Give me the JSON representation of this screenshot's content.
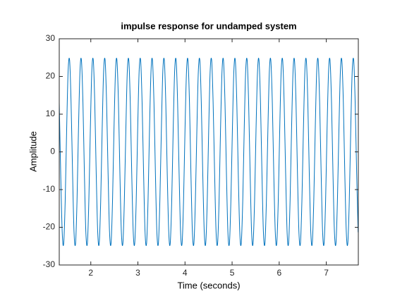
{
  "chart_data": {
    "type": "line",
    "title": "impulse response  for undamped system",
    "xlabel": "Time (seconds)",
    "ylabel": "Amplitude",
    "xlim": [
      1.33,
      7.68
    ],
    "ylim": [
      -30,
      30
    ],
    "xticks": [
      2,
      3,
      4,
      5,
      6,
      7
    ],
    "yticks": [
      -30,
      -20,
      -10,
      0,
      10,
      20,
      30
    ],
    "x": [
      1.33,
      1.361,
      1.393,
      1.424,
      1.456,
      1.487,
      1.518,
      1.55,
      1.581,
      1.613,
      1.644,
      1.676,
      1.707,
      1.738,
      1.77,
      1.801,
      1.833,
      1.864,
      1.895,
      1.927,
      1.958,
      1.99,
      2.021,
      2.053,
      2.084,
      2.115,
      2.147,
      2.178,
      2.21,
      2.241,
      2.272,
      2.304,
      2.335,
      2.367,
      2.398,
      2.43,
      2.461,
      2.492,
      2.524,
      2.555,
      2.587,
      2.618,
      2.649,
      2.681,
      2.712,
      2.744,
      2.775,
      2.807,
      2.838,
      2.869,
      2.901,
      2.932,
      2.964,
      2.995,
      3.026,
      3.058,
      3.089,
      3.121,
      3.152,
      3.184,
      3.215,
      3.246,
      3.278,
      3.309,
      3.341,
      3.372,
      3.403,
      3.435,
      3.466,
      3.498,
      3.529,
      3.561,
      3.592,
      3.623,
      3.655,
      3.686,
      3.718,
      3.749,
      3.78,
      3.812,
      3.843,
      3.875,
      3.906,
      3.938,
      3.969,
      4.0,
      4.032,
      4.063,
      4.095,
      4.126,
      4.157,
      4.189,
      4.22,
      4.252,
      4.283,
      4.315,
      4.346,
      4.377,
      4.409,
      4.44,
      4.472,
      4.503,
      4.534,
      4.566,
      4.597,
      4.629,
      4.66,
      4.692,
      4.723,
      4.754,
      4.786,
      4.817,
      4.849,
      4.88,
      4.911,
      4.943,
      4.974,
      5.006,
      5.037,
      5.068,
      5.1,
      5.131,
      5.163,
      5.194,
      5.226,
      5.257,
      5.288,
      5.32,
      5.351,
      5.383,
      5.414,
      5.445,
      5.477,
      5.508,
      5.54,
      5.571,
      5.603,
      5.634,
      5.665,
      5.697,
      5.728,
      5.76,
      5.791,
      5.822,
      5.854,
      5.885,
      5.917,
      5.948,
      5.98,
      6.011,
      6.042,
      6.074,
      6.105,
      6.137,
      6.168,
      6.199,
      6.231,
      6.262,
      6.294,
      6.325,
      6.357,
      6.388,
      6.419,
      6.451,
      6.482,
      6.514,
      6.545,
      6.576,
      6.608,
      6.639,
      6.671,
      6.702,
      6.734,
      6.765,
      6.796,
      6.828,
      6.859,
      6.891,
      6.922,
      6.953,
      6.985,
      7.016,
      7.048,
      7.079,
      7.111,
      7.142,
      7.173,
      7.205,
      7.236,
      7.268,
      7.299,
      7.33,
      7.362,
      7.393,
      7.425,
      7.456,
      7.488,
      7.519,
      7.55,
      7.582,
      7.613,
      7.645,
      7.676
    ],
    "series": [
      {
        "color": "#0072bd",
        "values": [
          13.09,
          -5.79,
          -21.33,
          -24.32,
          -13.09,
          5.79,
          21.33,
          24.32,
          13.09,
          -5.79,
          -21.33,
          -24.32,
          -13.09,
          5.79,
          21.33,
          24.32,
          13.09,
          -5.79,
          -21.33,
          -24.32,
          -13.09,
          5.79,
          21.33,
          24.32,
          13.09,
          -5.79,
          -21.33,
          -24.32,
          -13.09,
          5.79,
          21.33,
          24.32,
          13.09,
          -5.79,
          -21.33,
          -24.32,
          -13.09,
          5.79,
          21.33,
          24.32,
          13.09,
          -5.79,
          -21.33,
          -24.32,
          -13.09,
          5.79,
          21.33,
          24.32,
          13.09,
          -5.79,
          -21.33,
          -24.32,
          -13.09,
          5.79,
          21.33,
          24.32,
          13.09,
          -5.79,
          -21.33,
          -24.32,
          -13.09,
          5.79,
          21.33,
          24.32,
          13.09,
          -5.79,
          -21.33,
          -24.32,
          -13.09,
          5.79,
          21.33,
          24.32,
          13.09,
          -5.79,
          -21.33,
          -24.32,
          -13.09,
          5.79,
          21.33,
          24.32,
          13.09,
          -5.79,
          -21.33,
          -24.32,
          -13.09,
          5.79,
          21.33,
          24.32,
          13.09,
          -5.79,
          -21.33,
          -24.32,
          -13.09,
          5.79,
          21.33,
          24.32,
          13.09,
          -5.79,
          -21.33,
          -24.32,
          -13.09,
          5.79,
          21.33,
          24.32,
          13.09,
          -5.79,
          -21.33,
          -24.32,
          -13.09,
          5.79,
          21.33,
          24.32,
          13.09,
          -5.79,
          -21.33,
          -24.32,
          -13.09,
          5.79,
          21.33,
          24.32,
          13.09,
          -5.79,
          -21.33,
          -24.32,
          -13.09,
          5.79,
          21.33,
          24.32,
          13.09,
          -5.79,
          -21.33,
          -24.32,
          -13.09,
          5.79,
          21.33,
          24.32,
          13.09,
          -5.79,
          -21.33,
          -24.32,
          -13.09,
          5.79,
          21.33,
          24.32,
          13.09,
          -5.79,
          -21.33,
          -24.32,
          -13.09,
          5.79,
          21.33,
          24.32,
          13.09,
          -5.79,
          -21.33,
          -24.32,
          -13.09,
          5.79,
          21.33,
          24.32,
          13.09,
          -5.79,
          -21.33,
          -24.32,
          -13.09,
          5.79,
          21.33,
          24.32,
          13.09,
          -5.79,
          -21.33,
          -24.32,
          -13.09,
          5.79,
          21.33,
          24.32,
          13.09,
          -5.79,
          -21.33,
          -24.32,
          -13.09,
          5.79,
          21.33,
          24.32,
          13.09,
          -5.79,
          -21.33,
          -24.32,
          -13.09,
          5.79,
          21.33,
          24.32,
          13.09,
          -5.79,
          -21.33,
          -24.32,
          -13.09,
          5.79,
          21.33,
          24.32,
          13.09,
          -5.79,
          -21.33
        ]
      }
    ]
  }
}
